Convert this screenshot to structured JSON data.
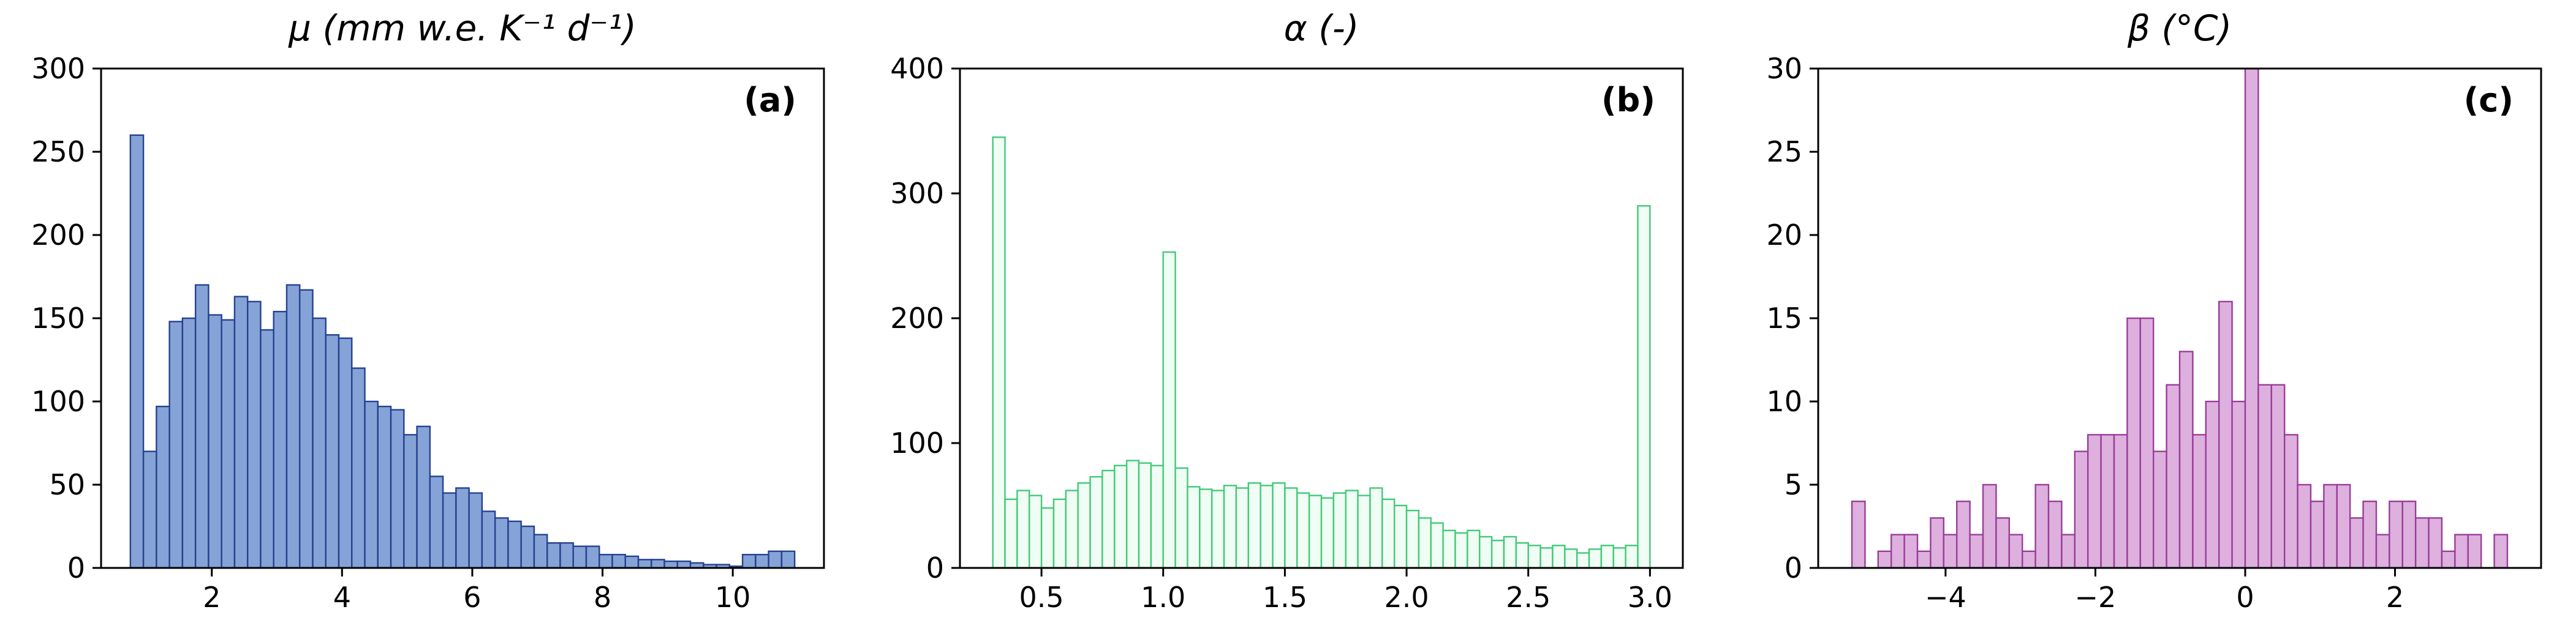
{
  "figure": {
    "background": "#ffffff",
    "axis_color": "#000000",
    "tick_font_size": 46,
    "title_font_size": 58
  },
  "chart_data": [
    {
      "type": "bar",
      "panel_label": "(a)",
      "title": "μ (mm w.e. K⁻¹ d⁻¹)",
      "bar_fill": "#85a3d6",
      "bar_edge": "#26418f",
      "bin_start": 0.75,
      "bin_width": 0.2,
      "values": [
        260,
        70,
        97,
        148,
        150,
        170,
        152,
        149,
        163,
        160,
        143,
        154,
        170,
        167,
        150,
        140,
        138,
        120,
        100,
        97,
        95,
        80,
        85,
        55,
        45,
        48,
        45,
        34,
        30,
        28,
        25,
        20,
        15,
        15,
        13,
        13,
        8,
        8,
        7,
        5,
        5,
        4,
        4,
        3,
        2,
        2,
        1,
        8,
        8,
        10,
        10
      ],
      "xlim": [
        0.3,
        11.4
      ],
      "ylim": [
        0,
        300
      ],
      "xticks": [
        2,
        4,
        6,
        8,
        10
      ],
      "xtick_labels": [
        "2",
        "4",
        "6",
        "8",
        "10"
      ],
      "yticks": [
        0,
        50,
        100,
        150,
        200,
        250,
        300
      ],
      "ytick_labels": [
        "0",
        "50",
        "100",
        "150",
        "200",
        "250",
        "300"
      ],
      "grid": false,
      "legend": false
    },
    {
      "type": "bar",
      "panel_label": "(b)",
      "title": "α (-)",
      "bar_fill": "#f0fdf4",
      "bar_edge": "#41c978",
      "bin_start": 0.3,
      "bin_width": 0.05,
      "values": [
        345,
        55,
        62,
        58,
        48,
        55,
        62,
        68,
        73,
        78,
        82,
        86,
        84,
        82,
        253,
        80,
        65,
        63,
        62,
        66,
        64,
        68,
        66,
        68,
        64,
        60,
        58,
        56,
        60,
        62,
        58,
        64,
        55,
        50,
        46,
        40,
        36,
        30,
        28,
        30,
        25,
        22,
        25,
        20,
        18,
        16,
        18,
        15,
        12,
        15,
        18,
        16,
        18,
        290
      ],
      "xlim": [
        0.165,
        3.135
      ],
      "ylim": [
        0,
        400
      ],
      "xticks": [
        0.5,
        1.0,
        1.5,
        2.0,
        2.5,
        3.0
      ],
      "xtick_labels": [
        "0.5",
        "1.0",
        "1.5",
        "2.0",
        "2.5",
        "3.0"
      ],
      "yticks": [
        0,
        100,
        200,
        300,
        400
      ],
      "ytick_labels": [
        "0",
        "100",
        "200",
        "300",
        "400"
      ],
      "grid": false,
      "legend": false
    },
    {
      "type": "bar",
      "panel_label": "(c)",
      "title": "β (°C)",
      "bar_fill": "#ddb0dd",
      "bar_edge": "#993d99",
      "bin_start": -5.25,
      "bin_width": 0.175,
      "values": [
        4,
        0,
        1,
        2,
        2,
        1,
        3,
        2,
        4,
        2,
        5,
        3,
        2,
        1,
        5,
        4,
        2,
        7,
        8,
        8,
        8,
        15,
        15,
        7,
        11,
        13,
        8,
        10,
        16,
        10,
        30,
        11,
        11,
        8,
        5,
        4,
        5,
        5,
        3,
        4,
        2,
        4,
        4,
        3,
        3,
        1,
        2,
        2,
        0,
        2
      ],
      "xlim": [
        -5.7,
        3.95
      ],
      "ylim": [
        0,
        30
      ],
      "xticks": [
        -4,
        -2,
        0,
        2
      ],
      "xtick_labels": [
        "−4",
        "−2",
        "0",
        "2"
      ],
      "yticks": [
        0,
        5,
        10,
        15,
        20,
        25,
        30
      ],
      "ytick_labels": [
        "0",
        "5",
        "10",
        "15",
        "20",
        "25",
        "30"
      ],
      "grid": false,
      "legend": false
    }
  ]
}
